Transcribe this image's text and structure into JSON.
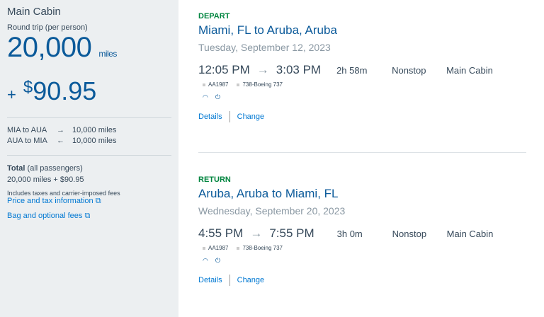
{
  "summary": {
    "cabin": "Main Cabin",
    "trip_type": "Round trip (per person)",
    "miles": "20,000",
    "miles_unit": "miles",
    "plus": "+",
    "currency": "$",
    "cash": "90.95",
    "legs": [
      {
        "route": "MIA to AUA",
        "arrow": "→",
        "miles": "10,000 miles"
      },
      {
        "route": "AUA to MIA",
        "arrow": "←",
        "miles": "10,000 miles"
      }
    ],
    "total_label": "Total",
    "total_note": "(all passengers)",
    "total_value": "20,000 miles + $90.95",
    "fees_note": "Includes taxes and carrier-imposed fees",
    "price_link": "Price and tax information",
    "bag_link": "Bag and optional fees"
  },
  "flights": [
    {
      "label": "DEPART",
      "route": "Miami, FL to Aruba, Aruba",
      "date": "Tuesday, September 12, 2023",
      "depart": "12:05 PM",
      "arrive": "3:03 PM",
      "duration": "2h 58m",
      "stops": "Nonstop",
      "cabin": "Main Cabin",
      "flight": "AA1987",
      "aircraft": "738-Boeing 737",
      "details": "Details",
      "change": "Change"
    },
    {
      "label": "RETURN",
      "route": "Aruba, Aruba to Miami, FL",
      "date": "Wednesday, September 20, 2023",
      "depart": "4:55 PM",
      "arrive": "7:55 PM",
      "duration": "3h 0m",
      "stops": "Nonstop",
      "cabin": "Main Cabin",
      "flight": "AA1987",
      "aircraft": "738-Boeing 737",
      "details": "Details",
      "change": "Change"
    }
  ],
  "colors": {
    "accent": "#0b5a9a",
    "link": "#0078d2",
    "label_green": "#00853f",
    "panel": "#eceff1"
  }
}
